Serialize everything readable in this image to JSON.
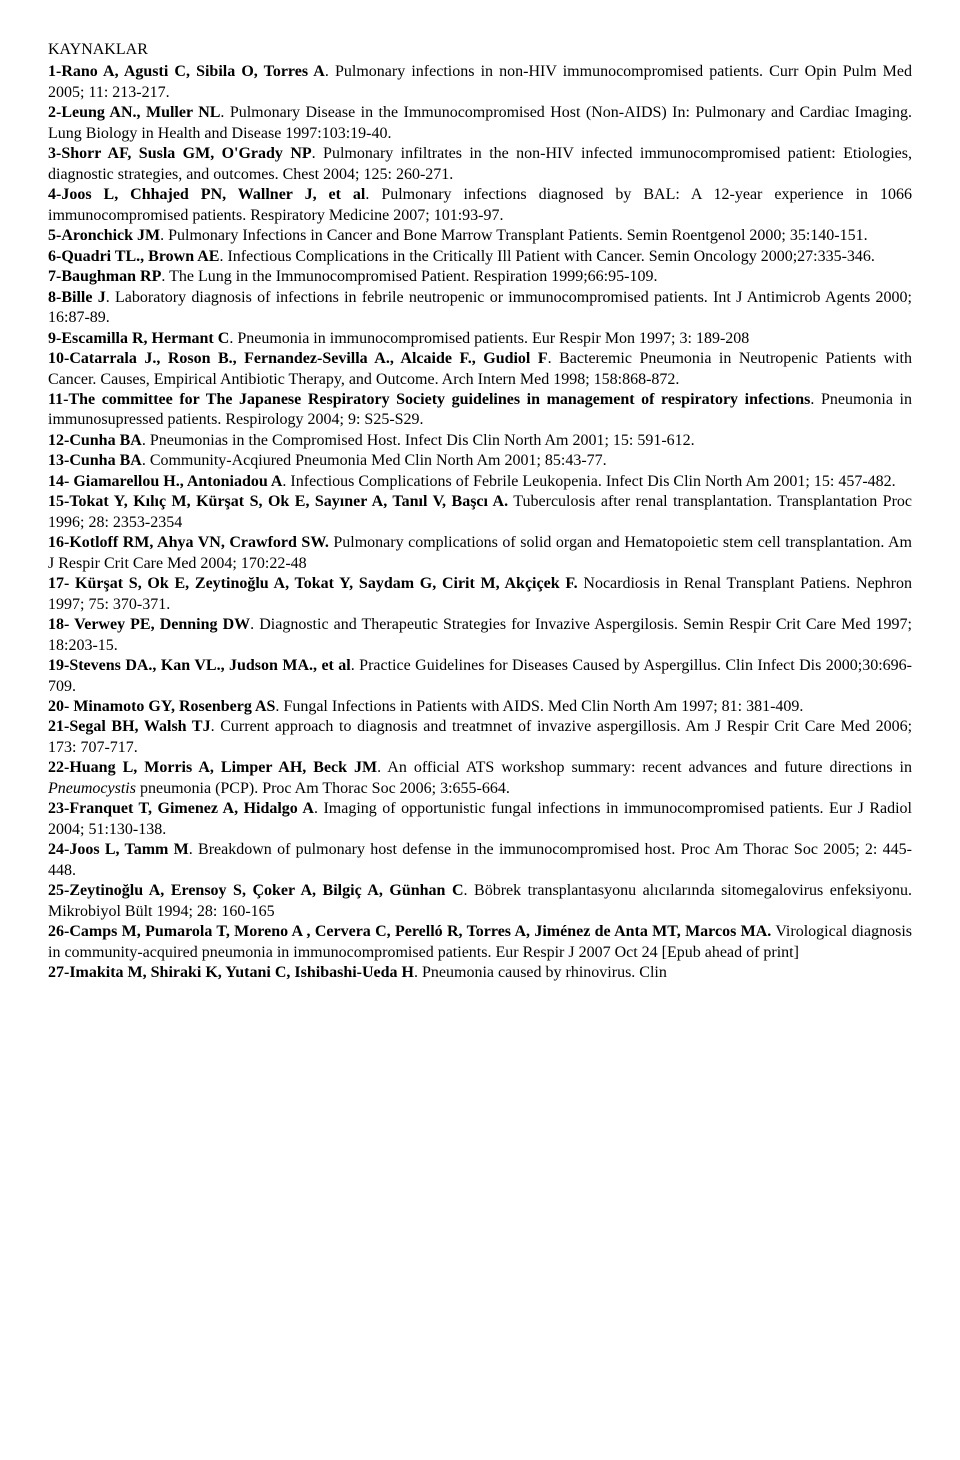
{
  "title": "KAYNAKLAR",
  "refs": [
    {
      "num": "1",
      "authors": "Rano A, Agusti C, Sibila O, Torres A",
      "rest": ". Pulmonary infections in non-HIV immunocompromised patients. Curr Opin Pulm Med 2005; 11: 213-217."
    },
    {
      "num": "2",
      "authors": "Leung AN., Muller NL",
      "rest": ". Pulmonary Disease in the Immunocompromised Host (Non-AIDS) In: Pulmonary and Cardiac Imaging. Lung Biology in Health and Disease 1997:103:19-40."
    },
    {
      "num": "3",
      "authors": "Shorr AF, Susla GM, O'Grady NP",
      "rest": ". Pulmonary infiltrates in the non-HIV infected immunocompromised patient: Etiologies, diagnostic strategies, and outcomes. Chest 2004; 125: 260-271."
    },
    {
      "num": "4",
      "authors": "Joos L, Chhajed PN, Wallner J, et al",
      "rest": ". Pulmonary infections diagnosed by BAL: A 12-year experience in 1066 immunocompromised patients. Respiratory Medicine 2007; 101:93-97."
    },
    {
      "num": "5",
      "authors": "Aronchick JM",
      "rest": ". Pulmonary Infections in Cancer and Bone Marrow Transplant Patients. Semin Roentgenol 2000; 35:140-151."
    },
    {
      "num": "6",
      "authors": "Quadri TL., Brown AE",
      "rest": ". Infectious Complications in the Critically Ill Patient with Cancer. Semin Oncology 2000;27:335-346."
    },
    {
      "num": "7",
      "authors": "Baughman RP",
      "rest": ". The Lung in the Immunocompromised Patient. Respiration 1999;66:95-109."
    },
    {
      "num": "8",
      "authors": "Bille J",
      "rest": ". Laboratory diagnosis of infections in febrile neutropenic or immunocompromised patients. Int J Antimicrob Agents 2000; 16:87-89."
    },
    {
      "num": "9",
      "authors": "Escamilla R, Hermant C",
      "rest": ". Pneumonia in immunocompromised patients. Eur Respir Mon 1997; 3: 189-208"
    },
    {
      "num": "10",
      "authors": "Catarrala J., Roson B., Fernandez-Sevilla A., Alcaide F., Gudiol F",
      "rest": ". Bacteremic Pneumonia in Neutropenic Patients with Cancer. Causes, Empirical Antibiotic Therapy, and Outcome. Arch Intern Med 1998; 158:868-872."
    },
    {
      "num": "11",
      "authors": "The committee for The Japanese Respiratory Society guidelines in management of respiratory infections",
      "rest": ". Pneumonia in immunosupressed patients. Respirology 2004; 9: S25-S29."
    },
    {
      "num": "12",
      "authors": "Cunha BA",
      "rest": ". Pneumonias in the Compromised Host. Infect Dis Clin North Am 2001; 15: 591-612."
    },
    {
      "num": "13",
      "authors": "Cunha BA",
      "rest": ". Community-Acqiured Pneumonia Med Clin North Am 2001; 85:43-77."
    },
    {
      "num": "14",
      "authors": " Giamarellou H., Antoniadou A",
      "rest": ". Infectious Complications of Febrile Leukopenia. Infect Dis Clin North Am 2001; 15: 457-482."
    },
    {
      "num": "15",
      "authors": "Tokat Y, Kılıç M, Kürşat S, Ok E, Sayıner A, Tanıl V, Başcı A.",
      "rest": " Tuberculosis after renal transplantation. Transplantation Proc 1996; 28: 2353-2354"
    },
    {
      "num": "16",
      "authors": "Kotloff RM, Ahya VN, Crawford SW.",
      "rest": " Pulmonary complications of solid organ and Hematopoietic stem cell transplantation. Am J Respir Crit Care Med 2004; 170:22-48"
    },
    {
      "num": "17",
      "authors": " Kürşat S, Ok E, Zeytinoğlu A, Tokat Y, Saydam G, Cirit M, Akçiçek F.",
      "rest": " Nocardiosis in Renal Transplant Patiens. Nephron 1997; 75: 370-371."
    },
    {
      "num": "18",
      "authors": " Verwey PE, Denning DW",
      "rest": ". Diagnostic and Therapeutic Strategies for Invazive Aspergilosis. Semin Respir Crit Care Med 1997; 18:203-15."
    },
    {
      "num": "19",
      "authors": "Stevens DA., Kan VL., Judson MA., et al",
      "rest": ". Practice Guidelines for Diseases Caused by Aspergillus. Clin Infect Dis 2000;30:696-709."
    },
    {
      "num": "20",
      "authors": " Minamoto GY, Rosenberg AS",
      "rest": ". Fungal Infections in Patients with AIDS. Med Clin North Am 1997; 81: 381-409."
    },
    {
      "num": "21",
      "authors": "Segal BH, Walsh TJ",
      "rest": ". Current approach to diagnosis and treatmnet of invazive aspergillosis. Am J Respir Crit Care Med 2006; 173: 707-717."
    },
    {
      "num": "22",
      "authors": "Huang L, Morris A, Limper AH, Beck JM",
      "rest_pre": ". An official ATS workshop summary: recent advances and future directions in ",
      "italic": "Pneumocystis",
      "rest_post": " pneumonia (PCP). Proc Am Thorac Soc 2006; 3:655-664."
    },
    {
      "num": "23",
      "authors": "Franquet T, Gimenez A, Hidalgo A",
      "rest": ". Imaging of opportunistic fungal infections in immunocompromised patients. Eur J Radiol 2004; 51:130-138."
    },
    {
      "num": "24",
      "authors": "Joos L, Tamm M",
      "rest": ". Breakdown of pulmonary host defense in the immunocompromised host. Proc Am Thorac Soc 2005; 2: 445-448."
    },
    {
      "num": "25",
      "authors": "Zeytinoğlu A, Erensoy S, Çoker A, Bilgiç A, Günhan C",
      "rest": ". Böbrek transplantasyonu alıcılarında sitomegalovirus enfeksiyonu. Mikrobiyol Bült 1994; 28: 160-165"
    },
    {
      "num": "26",
      "authors": "Camps M, Pumarola T, Moreno A , Cervera C, Perelló R, Torres A, Jiménez de Anta MT, Marcos MA.",
      "rest": " Virological diagnosis in community-acquired pneumonia in immunocompromised patients. Eur Respir J 2007 Oct 24 [Epub ahead of print]"
    },
    {
      "num": "27",
      "authors": "Imakita M, Shiraki K, Yutani C, Ishibashi-Ueda H",
      "rest": ". Pneumonia caused by rhinovirus. Clin"
    }
  ]
}
